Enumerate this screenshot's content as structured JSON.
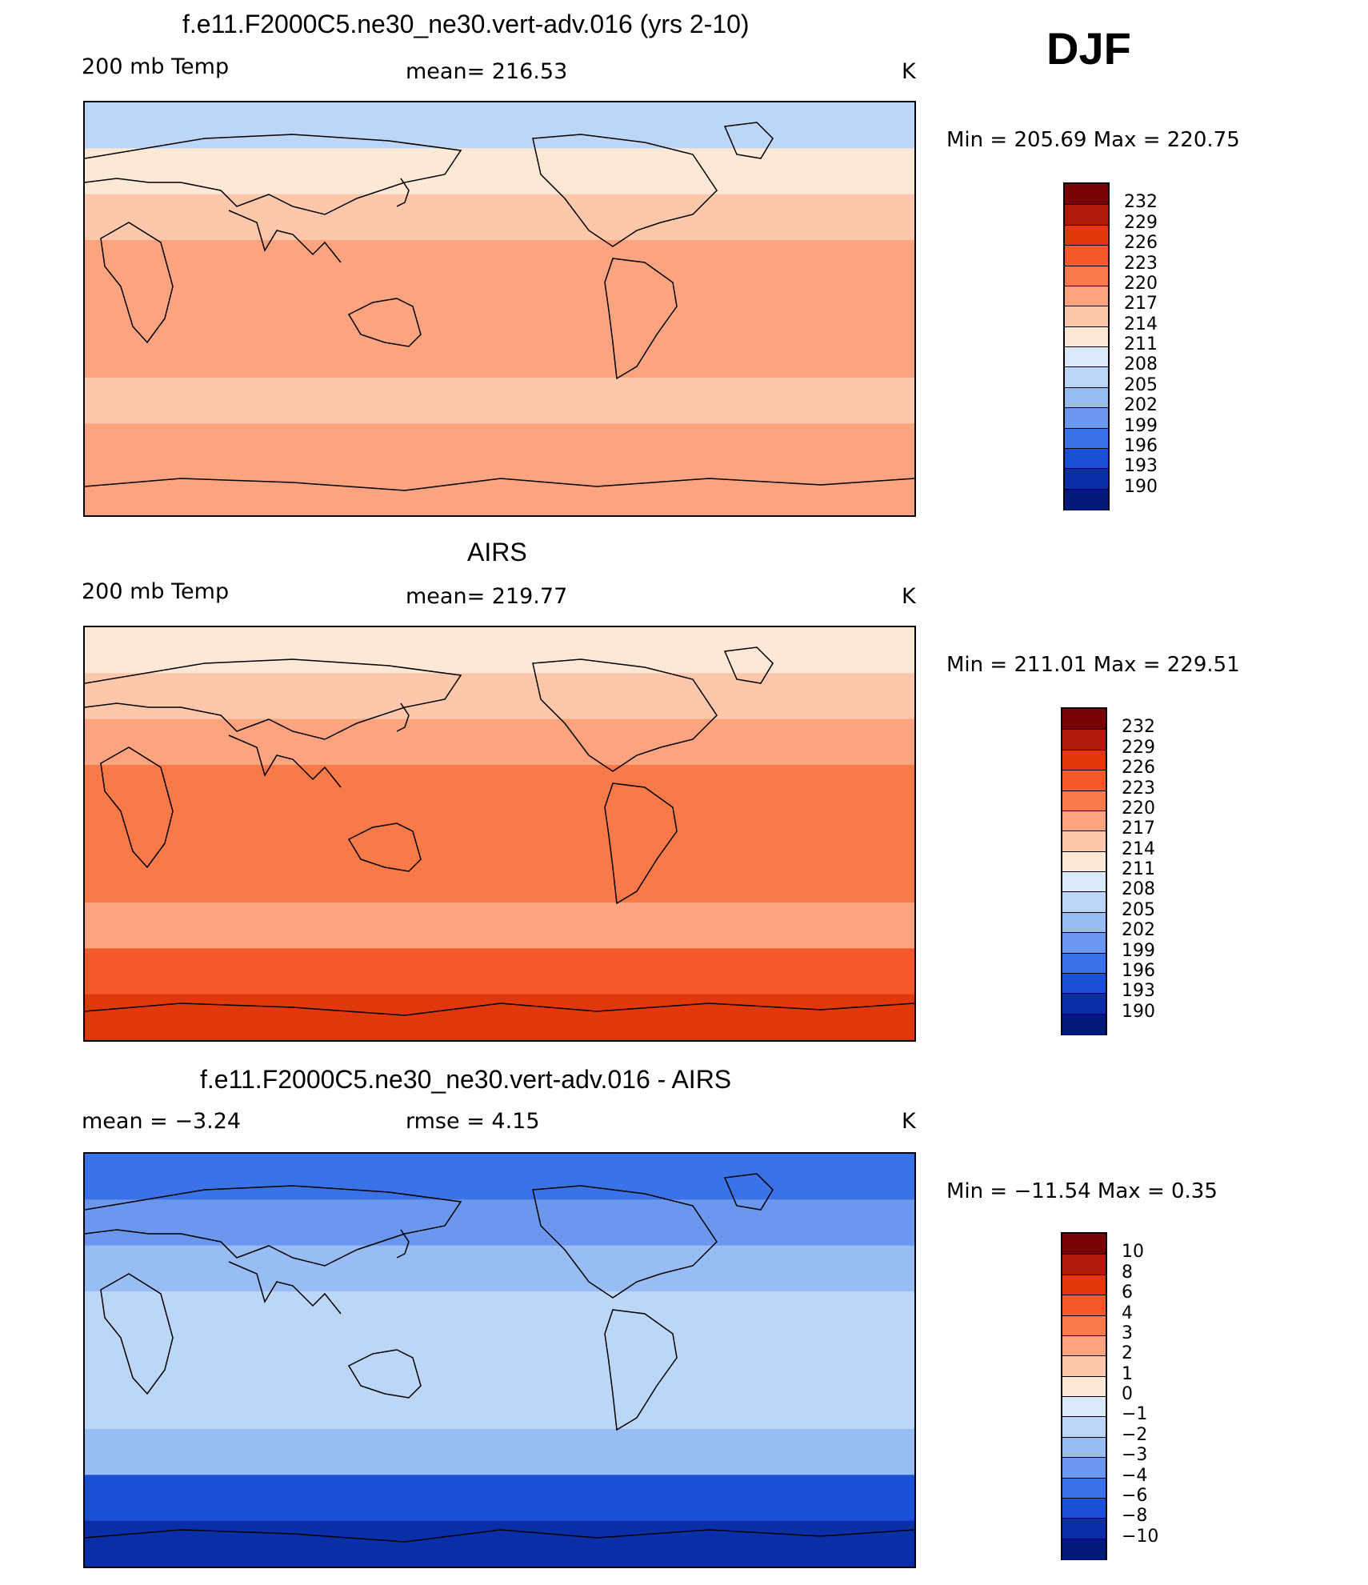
{
  "season": "DJF",
  "panels": [
    {
      "title": "f.e11.F2000C5.ne30_ne30.vert-adv.016 (yrs 2-10)",
      "left_label": "200 mb Temp",
      "center_label": "mean=  216.53",
      "units": "K",
      "minmax": "Min  =  205.69  Max  =  220.75",
      "colorbar_ticks": [
        "232",
        "229",
        "226",
        "223",
        "220",
        "217",
        "214",
        "211",
        "208",
        "205",
        "202",
        "199",
        "196",
        "193",
        "190"
      ]
    },
    {
      "title": "AIRS",
      "left_label": "200 mb Temp",
      "center_label": "mean=  219.77",
      "units": "K",
      "minmax": "Min  =  211.01  Max  =  229.51",
      "colorbar_ticks": [
        "232",
        "229",
        "226",
        "223",
        "220",
        "217",
        "214",
        "211",
        "208",
        "205",
        "202",
        "199",
        "196",
        "193",
        "190"
      ]
    },
    {
      "title": "f.e11.F2000C5.ne30_ne30.vert-adv.016 - AIRS",
      "left_label": "mean  =     −3.24",
      "center_label": "rmse  =      4.15",
      "units": "K",
      "minmax": "Min  =  −11.54  Max  =      0.35",
      "colorbar_ticks": [
        "10",
        "8",
        "6",
        "4",
        "3",
        "2",
        "1",
        "0",
        "−1",
        "−2",
        "−3",
        "−4",
        "−6",
        "−8",
        "−10"
      ]
    }
  ],
  "chart_data": [
    {
      "type": "heatmap",
      "title": "f.e11.F2000C5.ne30_ne30.vert-adv.016 (yrs 2-10)",
      "variable": "200 mb Temp",
      "units": "K",
      "mean": 216.53,
      "min": 205.69,
      "max": 220.75,
      "levels": [
        190,
        193,
        196,
        199,
        202,
        205,
        208,
        211,
        214,
        217,
        220,
        223,
        226,
        229,
        232
      ],
      "zonal_bands": [
        {
          "lat_from": 90,
          "lat_to": 70,
          "value": 207
        },
        {
          "lat_from": 70,
          "lat_to": 50,
          "value": 212
        },
        {
          "lat_from": 50,
          "lat_to": 30,
          "value": 216
        },
        {
          "lat_from": 30,
          "lat_to": -30,
          "value": 218
        },
        {
          "lat_from": -30,
          "lat_to": -50,
          "value": 216
        },
        {
          "lat_from": -50,
          "lat_to": -70,
          "value": 218
        },
        {
          "lat_from": -70,
          "lat_to": -90,
          "value": 218
        }
      ]
    },
    {
      "type": "heatmap",
      "title": "AIRS",
      "variable": "200 mb Temp",
      "units": "K",
      "mean": 219.77,
      "min": 211.01,
      "max": 229.51,
      "levels": [
        190,
        193,
        196,
        199,
        202,
        205,
        208,
        211,
        214,
        217,
        220,
        223,
        226,
        229,
        232
      ],
      "zonal_bands": [
        {
          "lat_from": 90,
          "lat_to": 70,
          "value": 213
        },
        {
          "lat_from": 70,
          "lat_to": 50,
          "value": 216
        },
        {
          "lat_from": 50,
          "lat_to": 30,
          "value": 219
        },
        {
          "lat_from": 30,
          "lat_to": -30,
          "value": 221
        },
        {
          "lat_from": -30,
          "lat_to": -50,
          "value": 219
        },
        {
          "lat_from": -50,
          "lat_to": -70,
          "value": 225
        },
        {
          "lat_from": -70,
          "lat_to": -90,
          "value": 227
        }
      ]
    },
    {
      "type": "heatmap",
      "title": "f.e11.F2000C5.ne30_ne30.vert-adv.016 - AIRS",
      "units": "K",
      "mean": -3.24,
      "rmse": 4.15,
      "min": -11.54,
      "max": 0.35,
      "levels": [
        -10,
        -8,
        -6,
        -4,
        -3,
        -2,
        -1,
        0,
        1,
        2,
        3,
        4,
        6,
        8,
        10
      ],
      "zonal_bands": [
        {
          "lat_from": 90,
          "lat_to": 70,
          "value": -6
        },
        {
          "lat_from": 70,
          "lat_to": 50,
          "value": -4
        },
        {
          "lat_from": 50,
          "lat_to": 30,
          "value": -2.5
        },
        {
          "lat_from": 30,
          "lat_to": -30,
          "value": -1.5
        },
        {
          "lat_from": -30,
          "lat_to": -50,
          "value": -2.5
        },
        {
          "lat_from": -50,
          "lat_to": -70,
          "value": -7
        },
        {
          "lat_from": -70,
          "lat_to": -90,
          "value": -10
        }
      ]
    }
  ],
  "colors": {
    "temp_scale": [
      "#7a0403",
      "#b01a0a",
      "#e0380b",
      "#f5582a",
      "#f87a48",
      "#fba47f",
      "#fcc7ab",
      "#fde8d6",
      "#dbeafb",
      "#bcd6f8",
      "#98bdf4",
      "#6b98ee",
      "#3c72e8",
      "#1b4fd8",
      "#0a2ea8",
      "#021a7a"
    ],
    "diff_scale": [
      "#7a0403",
      "#b01a0a",
      "#e0380b",
      "#f5582a",
      "#f87a48",
      "#fba47f",
      "#fcc7ab",
      "#fde8d6",
      "#dbeafb",
      "#bcd6f8",
      "#98bdf4",
      "#6b98ee",
      "#3c72e8",
      "#1b4fd8",
      "#0a2ea8",
      "#021a7a"
    ]
  }
}
